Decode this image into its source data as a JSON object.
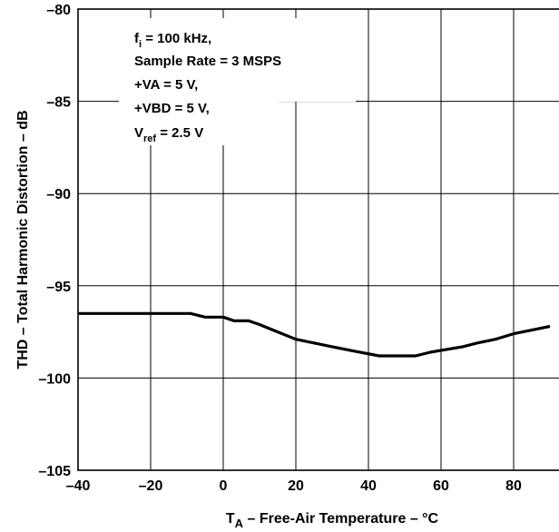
{
  "chart_data": {
    "type": "line",
    "xlabel": {
      "main": "T",
      "sub": "A",
      "rest": " – Free-Air Temperature – °C"
    },
    "ylabel": "THD – Total Harmonic Distortion – dB",
    "xlim": [
      -40,
      100
    ],
    "ylim": [
      -105,
      -80
    ],
    "xticks": [
      -40,
      -20,
      0,
      20,
      40,
      60,
      80
    ],
    "yticks": [
      -80,
      -85,
      -90,
      -95,
      -100,
      -105
    ],
    "x_tick_labels": [
      "–40",
      "–20",
      "0",
      "20",
      "40",
      "60",
      "80"
    ],
    "y_tick_labels": [
      "–80",
      "–85",
      "–90",
      "–95",
      "–100",
      "–105"
    ],
    "grid": true,
    "annotation": [
      {
        "main": "f",
        "sub": "i",
        "rest": " = 100 kHz,"
      },
      {
        "main": "Sample Rate = 3 MSPS",
        "sub": "",
        "rest": ""
      },
      {
        "main": "+VA = 5 V,",
        "sub": "",
        "rest": ""
      },
      {
        "main": "+VBD = 5 V,",
        "sub": "",
        "rest": ""
      },
      {
        "main": "V",
        "sub": "ref",
        "rest": " = 2.5 V"
      }
    ],
    "series": [
      {
        "x": [
          -40,
          -30,
          -20,
          -9,
          -5,
          0,
          3,
          7,
          10,
          15,
          20,
          25,
          30,
          35,
          43,
          48,
          53,
          57,
          60,
          66,
          70,
          75,
          80,
          85,
          90
        ],
        "y": [
          -96.5,
          -96.5,
          -96.5,
          -96.5,
          -96.7,
          -96.7,
          -96.9,
          -96.9,
          -97.1,
          -97.5,
          -97.9,
          -98.1,
          -98.3,
          -98.5,
          -98.8,
          -98.8,
          -98.8,
          -98.6,
          -98.5,
          -98.3,
          -98.1,
          -97.9,
          -97.6,
          -97.4,
          -97.2
        ]
      }
    ]
  }
}
